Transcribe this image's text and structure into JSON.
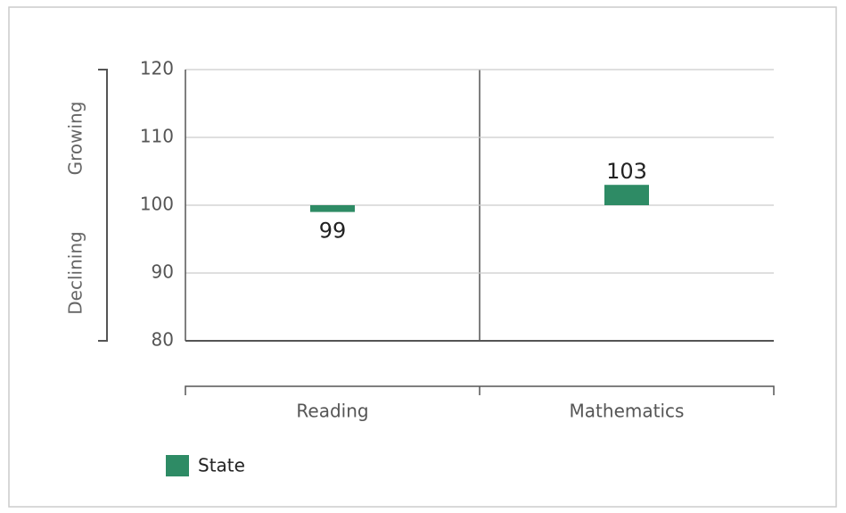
{
  "chart_data": {
    "type": "bar",
    "annotations": [
      "Growing",
      "Declining"
    ],
    "categories": [
      "Reading",
      "Mathematics"
    ],
    "series": [
      {
        "name": "State",
        "color": "#2e8b65",
        "values": [
          99,
          103
        ]
      }
    ],
    "baseline": 100,
    "ylim": [
      80,
      120
    ],
    "yticks": [
      80,
      90,
      100,
      110,
      120
    ],
    "grid": true
  }
}
